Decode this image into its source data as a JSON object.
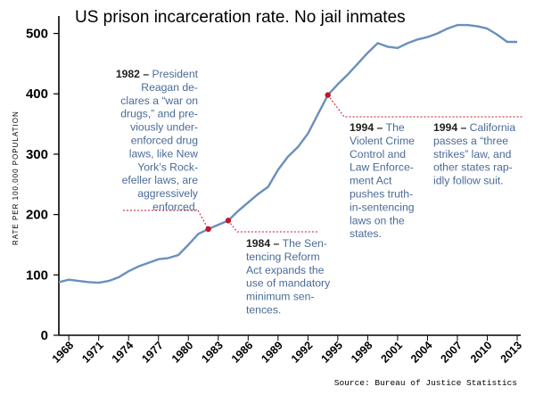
{
  "chart_data": {
    "type": "line",
    "title": "US prison incarceration rate. No jail inmates",
    "ylabel": "RATE PER 100,000 POPULATION",
    "xlabel": "",
    "source": "Source: Bureau of Justice Statistics",
    "xlim": [
      1967,
      2013
    ],
    "ylim": [
      0,
      520
    ],
    "yticks": [
      0,
      100,
      200,
      300,
      400,
      500
    ],
    "xticks": [
      1968,
      1971,
      1974,
      1977,
      1980,
      1983,
      1986,
      1989,
      1992,
      1995,
      1998,
      2001,
      2004,
      2007,
      2010,
      2013
    ],
    "line_color": "#6b8fbd",
    "marker_color": "#c4162a",
    "series": [
      {
        "x": [
          1967,
          1968,
          1969,
          1970,
          1971,
          1972,
          1973,
          1974,
          1975,
          1976,
          1977,
          1978,
          1979,
          1980,
          1981,
          1982,
          1983,
          1984,
          1985,
          1986,
          1987,
          1988,
          1989,
          1990,
          1991,
          1992,
          1993,
          1994,
          1995,
          1996,
          1997,
          1998,
          1999,
          2000,
          2001,
          2002,
          2003,
          2004,
          2005,
          2006,
          2007,
          2008,
          2009,
          2010,
          2011,
          2012,
          2013
        ],
        "values": [
          88,
          92,
          90,
          88,
          87,
          90,
          96,
          106,
          114,
          120,
          126,
          128,
          133,
          150,
          168,
          176,
          183,
          190,
          206,
          220,
          234,
          246,
          274,
          296,
          312,
          334,
          366,
          398,
          416,
          432,
          450,
          468,
          484,
          478,
          476,
          484,
          490,
          494,
          500,
          508,
          514,
          514,
          512,
          508,
          498,
          486,
          486
        ]
      }
    ],
    "highlight_points": [
      {
        "x": 1982,
        "y": 176
      },
      {
        "x": 1984,
        "y": 190
      },
      {
        "x": 1994,
        "y": 398
      }
    ],
    "annotations": [
      {
        "year_label": "1982 –",
        "lines": [
          "President",
          "Reagan de-",
          "clares a “war on",
          "drugs,” and pre-",
          "viously under-",
          "enforced drug",
          "laws, like New",
          "York’s Rock-",
          "efeller laws, are",
          "aggressively",
          "enforced."
        ]
      },
      {
        "year_label": "1984 –",
        "lines": [
          "The Sen-",
          "tencing Reform",
          "Act expands the",
          "use of mandatory",
          "minimum sen-",
          "tences."
        ]
      },
      {
        "year_label": "1994 –",
        "lines": [
          "The",
          "Violent Crime",
          "Control and",
          "Law Enforce-",
          "ment Act",
          "pushes truth-",
          "in-sentencing",
          "laws on the",
          "states."
        ]
      },
      {
        "year_label": "1994 –",
        "lines": [
          "California",
          "passes a “three",
          "strikes” law, and",
          "other states rap-",
          "idly follow suit."
        ]
      }
    ]
  }
}
